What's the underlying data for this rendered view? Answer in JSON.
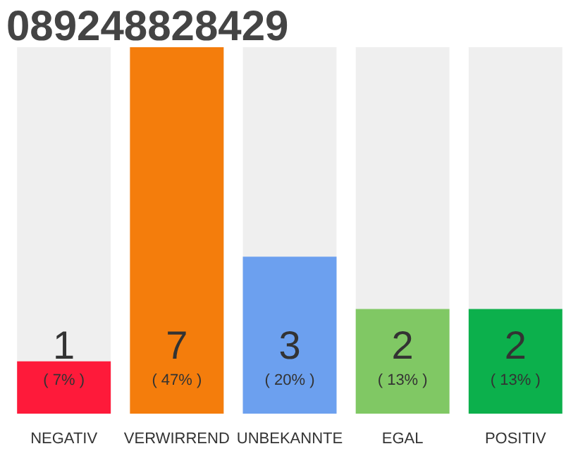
{
  "chart_data": {
    "type": "bar",
    "title": "089248828429",
    "categories": [
      "NEGATIV",
      "VERWIRREND",
      "UNBEKANNTE",
      "EGAL",
      "POSITIV"
    ],
    "values": [
      1,
      7,
      3,
      2,
      2
    ],
    "colors": [
      "#fe1a3a",
      "#f47d0c",
      "#6ca0ef",
      "#80c864",
      "#0cb04c"
    ],
    "ylim": [
      0,
      7
    ],
    "data_labels": true,
    "grid": false,
    "legend": false,
    "annotations": [
      "( 7% )",
      "( 47% )",
      "( 20% )",
      "( 13% )",
      "( 13% )"
    ]
  }
}
